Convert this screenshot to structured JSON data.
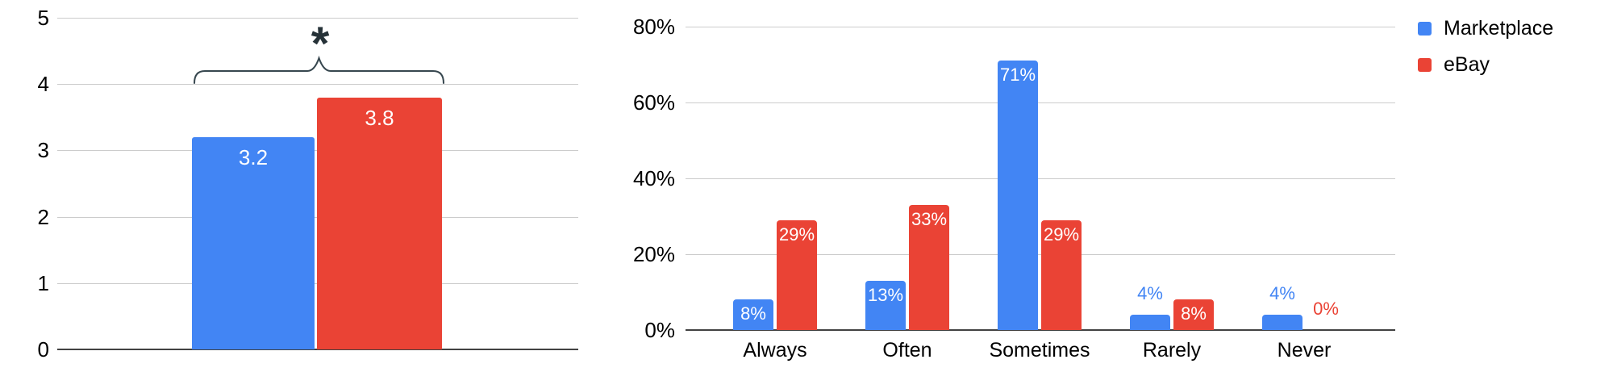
{
  "page": {
    "background": "#ffffff"
  },
  "colors": {
    "marketplace_blue": "#4285F4",
    "ebay_red": "#EA4335",
    "gridline": "#cccccc",
    "axis_line": "#424242",
    "text": "#000000",
    "bar_value_label": "#ffffff",
    "annotation": "#263238"
  },
  "chart_data": [
    {
      "id": "mean-rating-comparison",
      "type": "bar",
      "title": "",
      "xlabel": "",
      "ylabel": "",
      "ylim": [
        0,
        5
      ],
      "y_ticks": [
        "0",
        "1",
        "2",
        "3",
        "4",
        "5"
      ],
      "grid": true,
      "series": [
        {
          "name": "Marketplace",
          "color": "#4285F4",
          "value": 3.2,
          "label": "3.2"
        },
        {
          "name": "eBay",
          "color": "#EA4335",
          "value": 3.8,
          "label": "3.8"
        }
      ],
      "annotation": {
        "type": "significance-bracket",
        "symbol": "*",
        "spans": [
          "Marketplace",
          "eBay"
        ]
      }
    },
    {
      "id": "usage-frequency",
      "type": "grouped-bar",
      "title": "",
      "xlabel": "",
      "ylabel": "",
      "ylim": [
        0,
        80
      ],
      "y_ticks": [
        "0%",
        "20%",
        "40%",
        "60%",
        "80%"
      ],
      "grid": true,
      "categories": [
        "Always",
        "Often",
        "Sometimes",
        "Rarely",
        "Never"
      ],
      "series": [
        {
          "name": "Marketplace",
          "color": "#4285F4",
          "values": [
            8,
            13,
            71,
            4,
            4
          ],
          "labels": [
            "8%",
            "13%",
            "71%",
            "4%",
            "4%"
          ]
        },
        {
          "name": "eBay",
          "color": "#EA4335",
          "values": [
            29,
            33,
            29,
            8,
            0
          ],
          "labels": [
            "29%",
            "33%",
            "29%",
            "8%",
            "0%"
          ]
        }
      ],
      "legend": {
        "position": "top-right",
        "items": [
          {
            "label": "Marketplace",
            "color": "#4285F4"
          },
          {
            "label": "eBay",
            "color": "#EA4335"
          }
        ]
      }
    }
  ]
}
